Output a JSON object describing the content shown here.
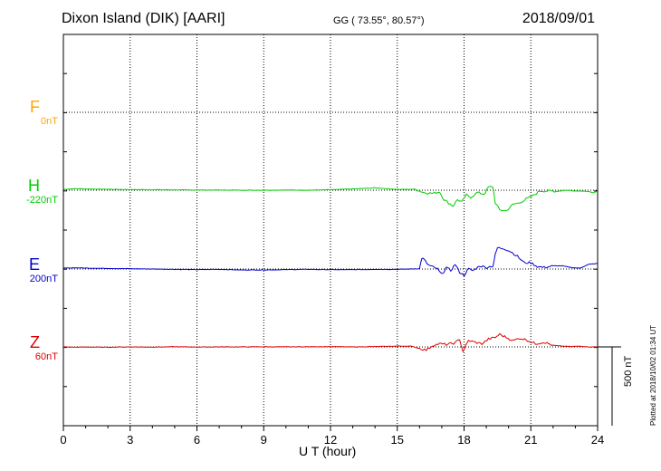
{
  "header": {
    "station": "Dixon Island (DIK)  [AARI]",
    "coords": "GG ( 73.55°,  80.57°)",
    "date": "2018/09/01"
  },
  "footer": {
    "xlabel": "U T (hour)",
    "scale_label": "500 nT",
    "plotted": "Plotted at 2018/10/02 01:34 UT"
  },
  "components": [
    {
      "key": "F",
      "label": "F",
      "offset": "0nT",
      "color": "#ffa500"
    },
    {
      "key": "H",
      "label": "H",
      "offset": "-220nT",
      "color": "#00cc00"
    },
    {
      "key": "E",
      "label": "E",
      "offset": "200nT",
      "color": "#0000cc"
    },
    {
      "key": "Z",
      "label": "Z",
      "offset": "60nT",
      "color": "#dd0000"
    }
  ],
  "chart_data": {
    "type": "line",
    "xlabel": "U T (hour)",
    "xlim": [
      0,
      24
    ],
    "x_ticks": [
      0,
      3,
      6,
      9,
      12,
      15,
      18,
      21,
      24
    ],
    "grid": true,
    "scale_bar_nT": 500,
    "series": [
      {
        "name": "H",
        "color": "#00cc00",
        "x": [
          0,
          0.5,
          1,
          2,
          3,
          4,
          5,
          6,
          7,
          8,
          9,
          10,
          11,
          12,
          13,
          14,
          15,
          15.8,
          16.2,
          16.6,
          16.9,
          17.1,
          17.3,
          17.5,
          17.7,
          17.9,
          18.1,
          18.3,
          18.6,
          18.9,
          19.1,
          19.3,
          19.4,
          19.6,
          19.9,
          20.2,
          20.5,
          20.8,
          21.1,
          21.4,
          21.8,
          22.2,
          22.6,
          23,
          23.4,
          23.8,
          24
        ],
        "y": [
          5,
          10,
          8,
          6,
          4,
          3,
          2,
          1,
          1,
          0,
          0,
          1,
          0,
          3,
          8,
          15,
          5,
          6,
          -15,
          -20,
          -10,
          -60,
          -80,
          -100,
          -60,
          -75,
          -30,
          -45,
          -15,
          -25,
          20,
          20,
          -80,
          -125,
          -130,
          -90,
          -80,
          -55,
          -35,
          -5,
          -5,
          -7,
          0,
          -5,
          -5,
          -15,
          -10
        ]
      },
      {
        "name": "E",
        "color": "#0000cc",
        "x": [
          0,
          0.5,
          1,
          2,
          3,
          4,
          5,
          6,
          7,
          8,
          9,
          10,
          11,
          12,
          13,
          14,
          15,
          15.6,
          16,
          16.1,
          16.2,
          16.4,
          16.8,
          17,
          17.2,
          17.4,
          17.6,
          17.8,
          18,
          18.2,
          18.4,
          18.7,
          19,
          19.3,
          19.4,
          19.5,
          19.8,
          20.1,
          20.4,
          20.7,
          21,
          21.3,
          21.6,
          22,
          22.4,
          22.8,
          23.2,
          23.6,
          24
        ],
        "y": [
          5,
          8,
          6,
          4,
          2,
          0,
          -2,
          -4,
          -2,
          -6,
          -6,
          -4,
          -2,
          -4,
          -4,
          -2,
          -2,
          0,
          2,
          70,
          60,
          25,
          0,
          -35,
          10,
          -10,
          30,
          -20,
          -40,
          0,
          -10,
          20,
          10,
          20,
          90,
          135,
          130,
          110,
          80,
          40,
          40,
          15,
          10,
          20,
          20,
          10,
          5,
          30,
          35
        ]
      },
      {
        "name": "Z",
        "color": "#dd0000",
        "x": [
          0,
          0.5,
          1,
          2,
          3,
          4,
          5,
          6,
          7,
          8,
          9,
          10,
          11,
          12,
          13,
          14,
          15,
          15.6,
          16,
          16.3,
          16.6,
          16.9,
          17.2,
          17.6,
          17.8,
          17.95,
          18.05,
          18.2,
          18.5,
          18.8,
          19.1,
          19.4,
          19.6,
          19.9,
          20.2,
          20.5,
          20.8,
          21.2,
          21.6,
          22,
          22.4,
          22.8,
          23.2,
          23.6,
          24
        ],
        "y": [
          0,
          -2,
          -1,
          -2,
          0,
          -1,
          1,
          -1,
          0,
          0,
          1,
          0,
          1,
          2,
          0,
          2,
          5,
          5,
          -10,
          -20,
          10,
          20,
          15,
          25,
          50,
          -30,
          0,
          40,
          30,
          20,
          50,
          60,
          80,
          60,
          40,
          55,
          45,
          20,
          30,
          10,
          5,
          2,
          5,
          0,
          0
        ]
      }
    ]
  }
}
